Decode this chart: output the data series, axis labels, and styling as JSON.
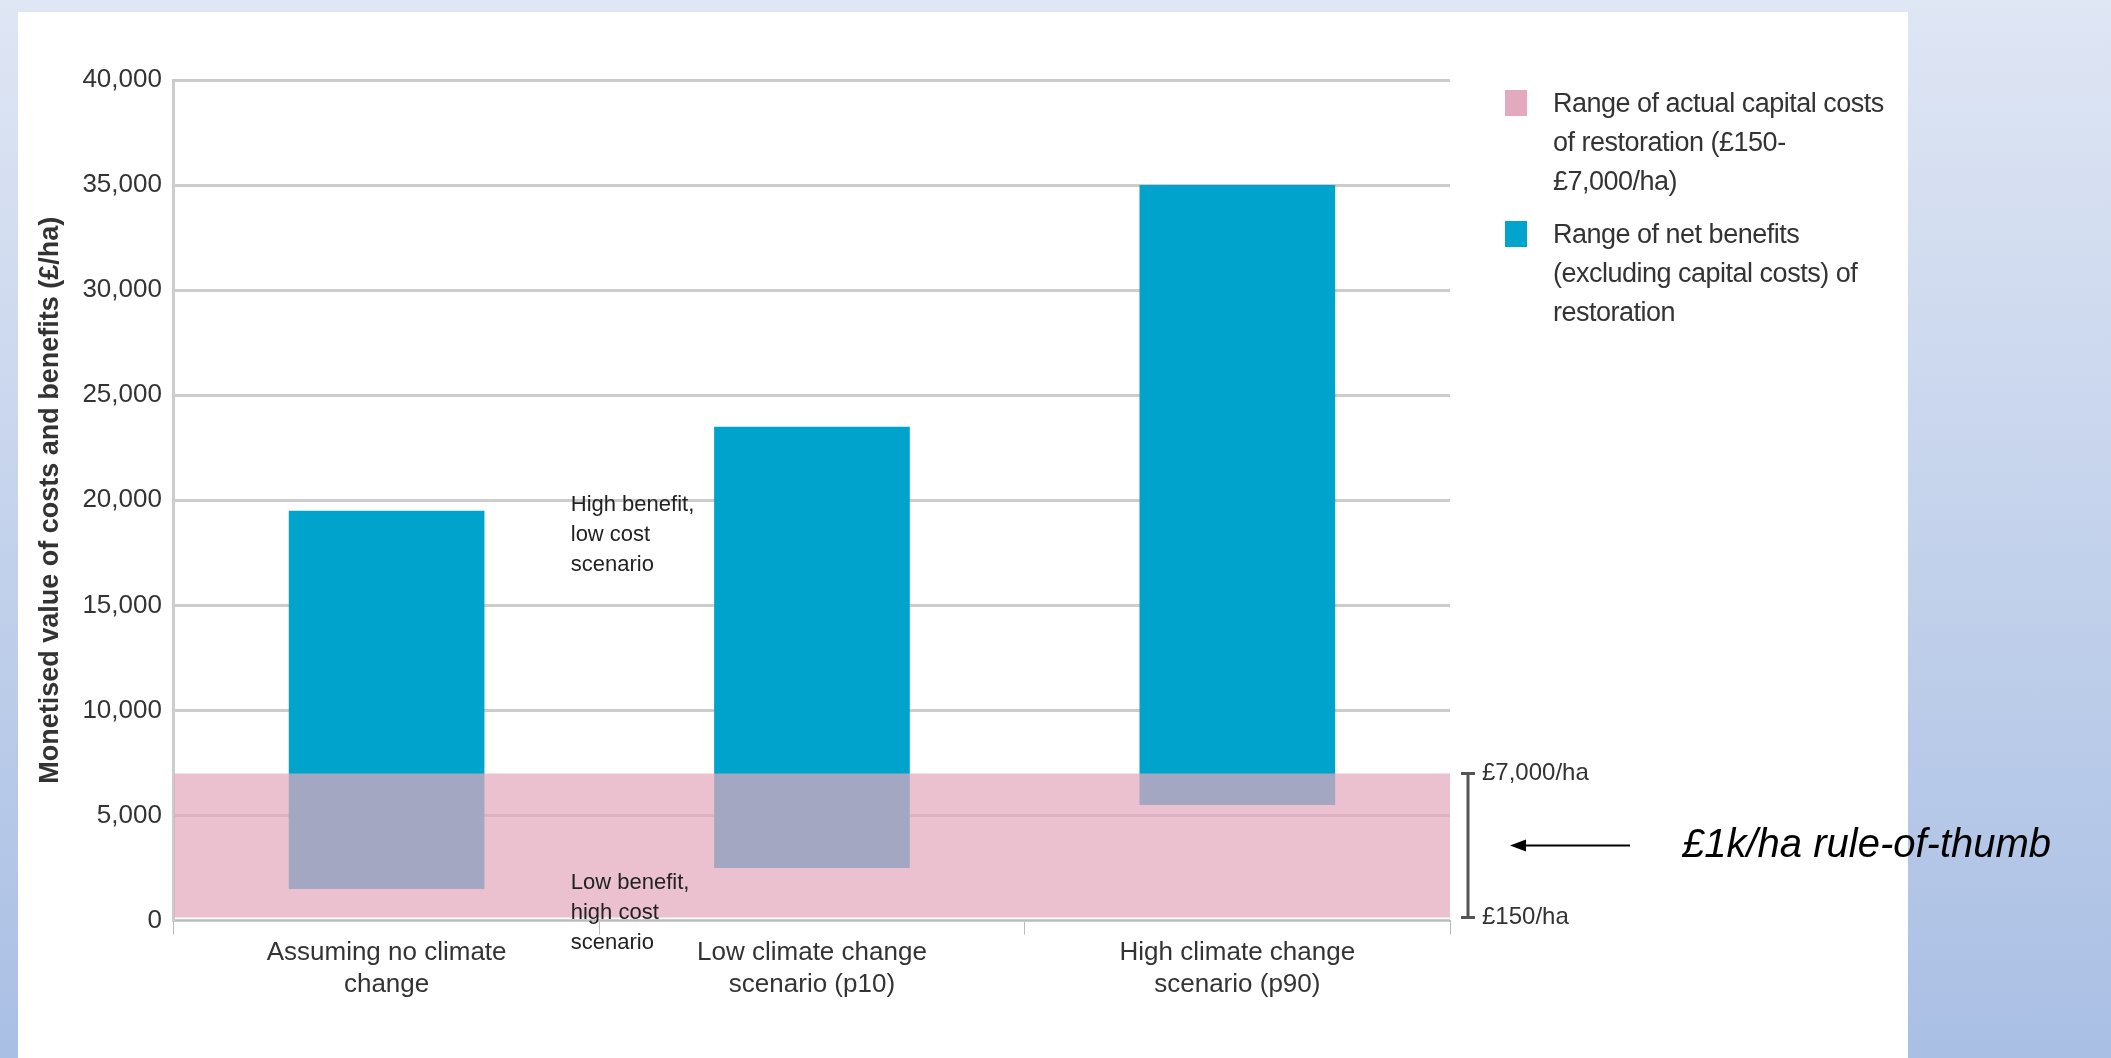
{
  "chart_data": {
    "type": "bar",
    "ylabel": "Monetised value of costs and benefits (£/ha)",
    "categories": [
      "Assuming no climate change",
      "Low climate change scenario (p10)",
      "High climate change scenario (p90)"
    ],
    "series": [
      {
        "name": "Range of net benefits (excluding capital costs) of restoration",
        "color": "#00a3cc",
        "values": [
          18000,
          21000,
          29500
        ],
        "base": [
          1500,
          2500,
          5500
        ]
      }
    ],
    "ylim": [
      0,
      40000
    ],
    "yticks": [
      0,
      {
        "value": 5000,
        "label": "5,000"
      },
      {
        "value": 10000,
        "label": "10,000"
      },
      {
        "value": 15000,
        "label": "15,000"
      },
      {
        "value": 20000,
        "label": "20,000"
      },
      {
        "value": 25000,
        "label": "25,000"
      },
      {
        "value": 30000,
        "label": "30,000"
      },
      {
        "value": 35000,
        "label": "35,000"
      },
      {
        "value": 40000,
        "label": "40,000"
      }
    ],
    "grid": "y",
    "legend": "top right",
    "bands": [
      {
        "axis": "y",
        "from": 150,
        "to": 7000,
        "label": "Range of actual capital costs of restoration (£150-£7,000/ha)",
        "color": "#e3a9bc"
      }
    ],
    "annotations": [
      "High benefit, low cost scenario",
      "Low benefit, high cost scenario",
      "£7,000/ha",
      "£150/ha",
      "£1k/ha rule-of-thumb"
    ]
  }
}
